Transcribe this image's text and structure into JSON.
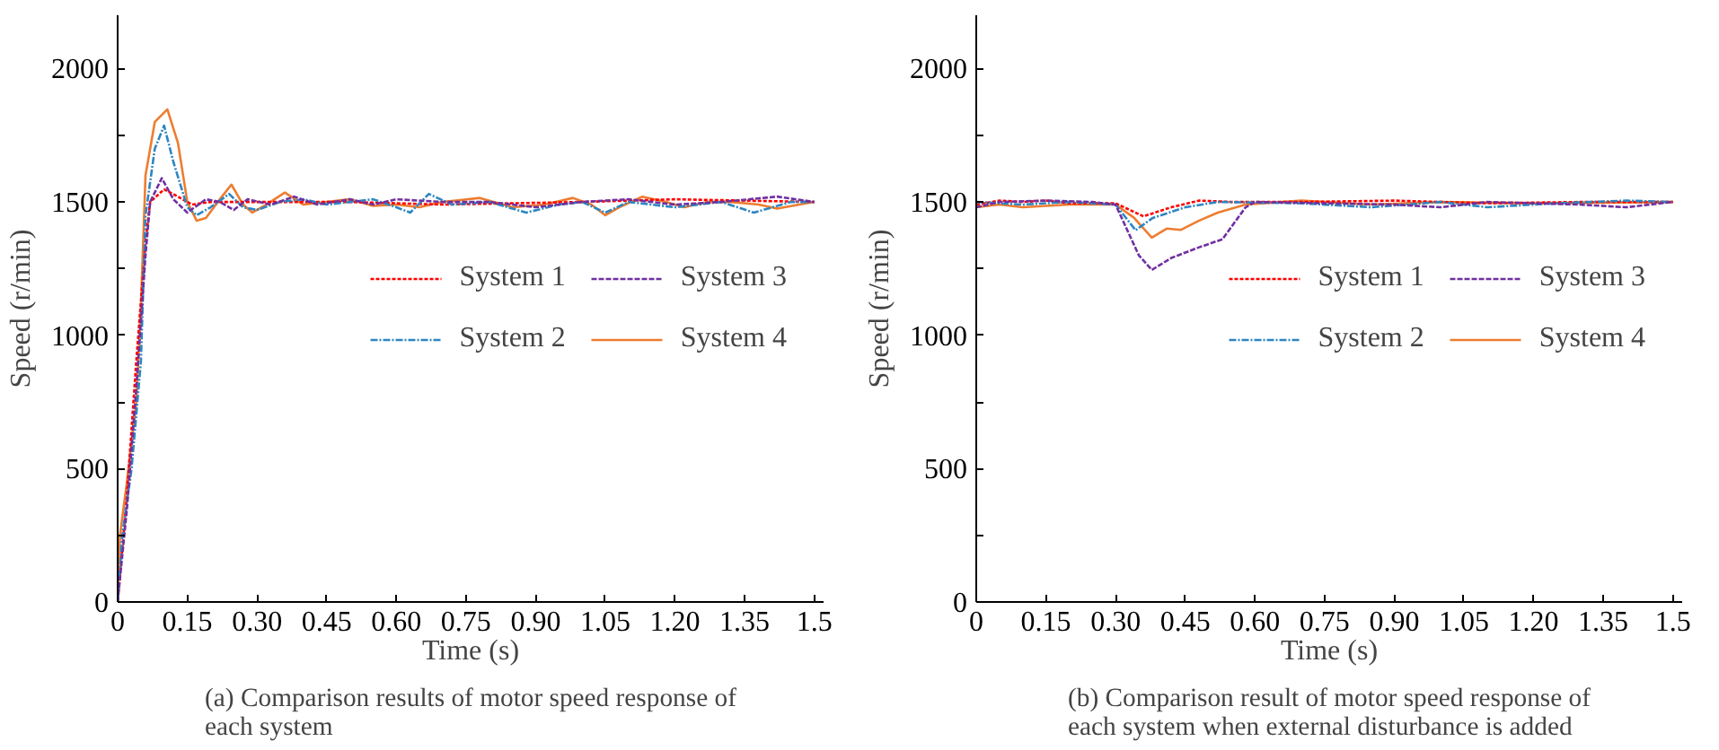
{
  "chart_data": [
    {
      "type": "line",
      "xlabel": "Time (s)",
      "ylabel": "Speed (r/min)",
      "annotations": [
        "(a) Comparison results of motor speed response of each system"
      ],
      "xlim": [
        0,
        1.52
      ],
      "ylim": [
        0,
        2200
      ],
      "xticks": [
        0,
        {
          "value": 0.15,
          "label": "0.15"
        },
        {
          "value": 0.3,
          "label": "0.30"
        },
        {
          "value": 0.45,
          "label": "0.45"
        },
        {
          "value": 0.6,
          "label": "0.60"
        },
        {
          "value": 0.75,
          "label": "0.75"
        },
        {
          "value": 0.9,
          "label": "0.90"
        },
        {
          "value": 1.05,
          "label": "1.05"
        },
        {
          "value": 1.2,
          "label": "1.20"
        },
        {
          "value": 1.35,
          "label": "1.35"
        },
        1.5
      ],
      "yticks": [
        0,
        {
          "value": 250,
          "label": null
        },
        500,
        {
          "value": 750,
          "label": null
        },
        1000,
        {
          "value": 1250,
          "label": null
        },
        1500,
        {
          "value": 1750,
          "label": null
        },
        2000
      ],
      "grid": false,
      "legend": "right",
      "series": [
        {
          "name": "System 1",
          "color": "#ff0000",
          "line_style": "dotted",
          "x": [
            0,
            0.02,
            0.04,
            0.06,
            0.07,
            0.1,
            0.13,
            0.16,
            0.2,
            0.3,
            0.5,
            0.7,
            1.0,
            1.2,
            1.5
          ],
          "values": [
            0,
            400,
            900,
            1350,
            1500,
            1547,
            1520,
            1490,
            1500,
            1500,
            1500,
            1490,
            1500,
            1510,
            1500
          ]
        },
        {
          "name": "System 2",
          "color": "#2e86c1",
          "line_style": "dashdot",
          "x": [
            0,
            0.01,
            0.03,
            0.05,
            0.06,
            0.08,
            0.1,
            0.12,
            0.15,
            0.17,
            0.2,
            0.24,
            0.27,
            0.3,
            0.35,
            0.4,
            0.45,
            0.5,
            0.55,
            0.6,
            0.63,
            0.67,
            0.72,
            0.8,
            0.88,
            0.95,
            1.0,
            1.05,
            1.1,
            1.2,
            1.3,
            1.37,
            1.45,
            1.5
          ],
          "values": [
            0,
            250,
            500,
            900,
            1450,
            1700,
            1786,
            1650,
            1480,
            1450,
            1480,
            1530,
            1480,
            1470,
            1500,
            1510,
            1490,
            1500,
            1510,
            1480,
            1460,
            1530,
            1490,
            1500,
            1460,
            1490,
            1500,
            1460,
            1500,
            1480,
            1500,
            1460,
            1500,
            1500
          ]
        },
        {
          "name": "System 3",
          "color": "#7030a0",
          "line_style": "dashed",
          "x": [
            0,
            0.02,
            0.04,
            0.06,
            0.07,
            0.095,
            0.12,
            0.15,
            0.19,
            0.22,
            0.25,
            0.28,
            0.33,
            0.38,
            0.43,
            0.5,
            0.55,
            0.6,
            0.7,
            0.8,
            0.9,
            1.0,
            1.1,
            1.2,
            1.3,
            1.42,
            1.5
          ],
          "values": [
            0,
            350,
            800,
            1300,
            1500,
            1589,
            1510,
            1460,
            1510,
            1500,
            1470,
            1510,
            1490,
            1520,
            1490,
            1510,
            1490,
            1510,
            1500,
            1500,
            1480,
            1500,
            1510,
            1490,
            1500,
            1520,
            1500
          ]
        },
        {
          "name": "System 4",
          "color": "#ed7d31",
          "line_style": "solid",
          "x": [
            0,
            0.005,
            0.02,
            0.04,
            0.05,
            0.06,
            0.08,
            0.107,
            0.13,
            0.15,
            0.17,
            0.19,
            0.22,
            0.245,
            0.27,
            0.29,
            0.32,
            0.36,
            0.4,
            0.45,
            0.5,
            0.55,
            0.6,
            0.65,
            0.7,
            0.78,
            0.85,
            0.92,
            0.98,
            1.02,
            1.05,
            1.08,
            1.13,
            1.18,
            1.22,
            1.27,
            1.32,
            1.38,
            1.42,
            1.5
          ],
          "values": [
            0,
            250,
            450,
            750,
            1100,
            1600,
            1800,
            1847,
            1720,
            1500,
            1430,
            1440,
            1510,
            1565,
            1490,
            1460,
            1490,
            1535,
            1490,
            1500,
            1510,
            1485,
            1490,
            1480,
            1500,
            1515,
            1480,
            1490,
            1515,
            1490,
            1450,
            1480,
            1520,
            1500,
            1480,
            1500,
            1500,
            1490,
            1475,
            1500
          ]
        }
      ]
    },
    {
      "type": "line",
      "xlabel": "Time (s)",
      "ylabel": "Speed (r/min)",
      "annotations": [
        "(b) Comparison result of motor speed response of each system when external disturbance is added"
      ],
      "xlim": [
        0,
        1.52
      ],
      "ylim": [
        0,
        2200
      ],
      "xticks": [
        0,
        {
          "value": 0.15,
          "label": "0.15"
        },
        {
          "value": 0.3,
          "label": "0.30"
        },
        {
          "value": 0.45,
          "label": "0.45"
        },
        {
          "value": 0.6,
          "label": "0.60"
        },
        {
          "value": 0.75,
          "label": "0.75"
        },
        {
          "value": 0.9,
          "label": "0.90"
        },
        {
          "value": 1.05,
          "label": "1.05"
        },
        {
          "value": 1.2,
          "label": "1.20"
        },
        {
          "value": 1.35,
          "label": "1.35"
        },
        1.5
      ],
      "yticks": [
        0,
        {
          "value": 250,
          "label": null
        },
        500,
        {
          "value": 750,
          "label": null
        },
        1000,
        {
          "value": 1250,
          "label": null
        },
        1500,
        {
          "value": 1750,
          "label": null
        },
        2000
      ],
      "grid": false,
      "legend": "right",
      "series": [
        {
          "name": "System 1",
          "color": "#ff0000",
          "line_style": "dotted",
          "x": [
            0,
            0.05,
            0.1,
            0.15,
            0.2,
            0.3,
            0.36,
            0.42,
            0.48,
            0.55,
            0.7,
            0.9,
            1.1,
            1.3,
            1.5
          ],
          "values": [
            1490,
            1505,
            1500,
            1505,
            1495,
            1495,
            1446,
            1480,
            1505,
            1500,
            1500,
            1505,
            1495,
            1500,
            1500
          ]
        },
        {
          "name": "System 2",
          "color": "#2e86c1",
          "line_style": "dashdot",
          "x": [
            0,
            0.1,
            0.2,
            0.3,
            0.343,
            0.38,
            0.45,
            0.52,
            0.7,
            0.85,
            1.0,
            1.1,
            1.25,
            1.4,
            1.5
          ],
          "values": [
            1500,
            1490,
            1500,
            1490,
            1394,
            1440,
            1480,
            1500,
            1495,
            1480,
            1500,
            1480,
            1495,
            1505,
            1500
          ]
        },
        {
          "name": "System 3",
          "color": "#7030a0",
          "line_style": "dashed",
          "x": [
            0,
            0.05,
            0.15,
            0.25,
            0.3,
            0.35,
            0.378,
            0.42,
            0.48,
            0.53,
            0.58,
            0.6,
            0.75,
            0.9,
            1.0,
            1.1,
            1.3,
            1.4,
            1.5
          ],
          "values": [
            1480,
            1500,
            1505,
            1500,
            1490,
            1300,
            1245,
            1290,
            1330,
            1360,
            1480,
            1500,
            1495,
            1490,
            1480,
            1500,
            1490,
            1480,
            1500
          ]
        },
        {
          "name": "System 4",
          "color": "#ed7d31",
          "line_style": "solid",
          "x": [
            0,
            0.05,
            0.1,
            0.2,
            0.3,
            0.34,
            0.378,
            0.41,
            0.44,
            0.48,
            0.52,
            0.58,
            0.7,
            0.85,
            1.0,
            1.2,
            1.5
          ],
          "values": [
            1480,
            1490,
            1480,
            1490,
            1490,
            1440,
            1366,
            1400,
            1395,
            1430,
            1460,
            1490,
            1505,
            1490,
            1500,
            1495,
            1500
          ]
        }
      ]
    }
  ]
}
